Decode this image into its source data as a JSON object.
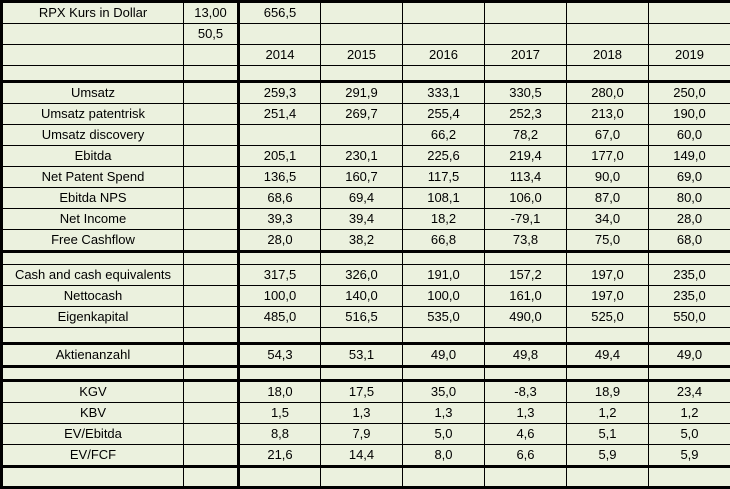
{
  "colors": {
    "background": "#ebf1de",
    "grid_line": "#000000",
    "text": "#000000"
  },
  "top": {
    "title": "RPX Kurs in Dollar",
    "price": "13,00",
    "big_value": "656,5",
    "second_value": "50,5"
  },
  "years": [
    "2014",
    "2015",
    "2016",
    "2017",
    "2018",
    "2019"
  ],
  "sections": [
    {
      "name": "earnings",
      "rows": [
        {
          "label": "Umsatz",
          "values": [
            "259,3",
            "291,9",
            "333,1",
            "330,5",
            "280,0",
            "250,0"
          ]
        },
        {
          "label": "Umsatz patentrisk",
          "values": [
            "251,4",
            "269,7",
            "255,4",
            "252,3",
            "213,0",
            "190,0"
          ]
        },
        {
          "label": "Umsatz discovery",
          "values": [
            "",
            "",
            "66,2",
            "78,2",
            "67,0",
            "60,0"
          ]
        },
        {
          "label": "Ebitda",
          "values": [
            "205,1",
            "230,1",
            "225,6",
            "219,4",
            "177,0",
            "149,0"
          ]
        },
        {
          "label": "Net Patent Spend",
          "values": [
            "136,5",
            "160,7",
            "117,5",
            "113,4",
            "90,0",
            "69,0"
          ]
        },
        {
          "label": "Ebitda NPS",
          "values": [
            "68,6",
            "69,4",
            "108,1",
            "106,0",
            "87,0",
            "80,0"
          ]
        },
        {
          "label": "Net Income",
          "values": [
            "39,3",
            "39,4",
            "18,2",
            "-79,1",
            "34,0",
            "28,0"
          ]
        },
        {
          "label": "Free Cashflow",
          "values": [
            "28,0",
            "38,2",
            "66,8",
            "73,8",
            "75,0",
            "68,0"
          ]
        }
      ]
    },
    {
      "name": "balance",
      "rows": [
        {
          "label": "Cash and cash equivalents",
          "values": [
            "317,5",
            "326,0",
            "191,0",
            "157,2",
            "197,0",
            "235,0"
          ]
        },
        {
          "label": "Nettocash",
          "values": [
            "100,0",
            "140,0",
            "100,0",
            "161,0",
            "197,0",
            "235,0"
          ]
        },
        {
          "label": "Eigenkapital",
          "values": [
            "485,0",
            "516,5",
            "535,0",
            "490,0",
            "525,0",
            "550,0"
          ]
        }
      ]
    },
    {
      "name": "shares",
      "rows": [
        {
          "label": "Aktienanzahl",
          "values": [
            "54,3",
            "53,1",
            "49,0",
            "49,8",
            "49,4",
            "49,0"
          ]
        }
      ]
    },
    {
      "name": "multiples",
      "rows": [
        {
          "label": "KGV",
          "values": [
            "18,0",
            "17,5",
            "35,0",
            "-8,3",
            "18,9",
            "23,4"
          ]
        },
        {
          "label": "KBV",
          "values": [
            "1,5",
            "1,3",
            "1,3",
            "1,3",
            "1,2",
            "1,2"
          ]
        },
        {
          "label": "EV/Ebitda",
          "values": [
            "8,8",
            "7,9",
            "5,0",
            "4,6",
            "5,1",
            "5,0"
          ]
        },
        {
          "label": "EV/FCF",
          "values": [
            "21,6",
            "14,4",
            "8,0",
            "6,6",
            "5,9",
            "5,9"
          ]
        }
      ]
    }
  ]
}
